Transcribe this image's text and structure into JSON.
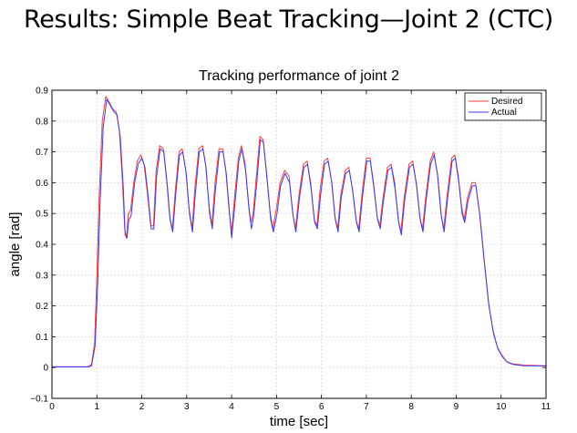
{
  "slide": {
    "title": "Results: Simple Beat Tracking—Joint 2 (CTC)"
  },
  "colors": {
    "desired": "#ff3b3b",
    "actual": "#3b3bff",
    "grid": "#cfcfcf",
    "axis": "#000000"
  },
  "chart_data": {
    "type": "line",
    "title": "Tracking performance of joint 2",
    "xlabel": "time [sec]",
    "ylabel": "angle [rad]",
    "xlim": [
      0,
      11
    ],
    "ylim": [
      -0.1,
      0.9
    ],
    "xticks": [
      "0",
      "1",
      "2",
      "3",
      "4",
      "5",
      "6",
      "7",
      "8",
      "9",
      "10",
      "11"
    ],
    "yticks": [
      "−0.1",
      "0",
      "0.1",
      "0.2",
      "0.3",
      "0.4",
      "0.5",
      "0.6",
      "0.7",
      "0.8",
      "0.9"
    ],
    "grid": true,
    "legend_position": "top-right",
    "series": [
      {
        "name": "Desired",
        "color": "#ff3b3b",
        "points": [
          [
            0,
            0.003
          ],
          [
            0.8,
            0.003
          ],
          [
            0.88,
            0.01
          ],
          [
            0.95,
            0.08
          ],
          [
            1.0,
            0.3
          ],
          [
            1.05,
            0.55
          ],
          [
            1.12,
            0.8
          ],
          [
            1.2,
            0.88
          ],
          [
            1.28,
            0.86
          ],
          [
            1.35,
            0.84
          ],
          [
            1.43,
            0.83
          ],
          [
            1.5,
            0.77
          ],
          [
            1.57,
            0.6
          ],
          [
            1.62,
            0.45
          ],
          [
            1.66,
            0.42
          ],
          [
            1.7,
            0.5
          ],
          [
            1.75,
            0.51
          ],
          [
            1.82,
            0.6
          ],
          [
            1.9,
            0.67
          ],
          [
            1.98,
            0.69
          ],
          [
            2.05,
            0.66
          ],
          [
            2.12,
            0.57
          ],
          [
            2.2,
            0.46
          ],
          [
            2.26,
            0.46
          ],
          [
            2.32,
            0.64
          ],
          [
            2.4,
            0.72
          ],
          [
            2.48,
            0.71
          ],
          [
            2.56,
            0.6
          ],
          [
            2.62,
            0.49
          ],
          [
            2.68,
            0.45
          ],
          [
            2.75,
            0.58
          ],
          [
            2.83,
            0.7
          ],
          [
            2.9,
            0.71
          ],
          [
            2.98,
            0.64
          ],
          [
            3.05,
            0.52
          ],
          [
            3.12,
            0.45
          ],
          [
            3.18,
            0.58
          ],
          [
            3.27,
            0.71
          ],
          [
            3.35,
            0.72
          ],
          [
            3.42,
            0.66
          ],
          [
            3.5,
            0.52
          ],
          [
            3.56,
            0.46
          ],
          [
            3.63,
            0.6
          ],
          [
            3.72,
            0.71
          ],
          [
            3.8,
            0.71
          ],
          [
            3.87,
            0.64
          ],
          [
            3.95,
            0.5
          ],
          [
            4.0,
            0.44
          ],
          [
            4.07,
            0.56
          ],
          [
            4.15,
            0.68
          ],
          [
            4.22,
            0.72
          ],
          [
            4.3,
            0.66
          ],
          [
            4.38,
            0.53
          ],
          [
            4.43,
            0.47
          ],
          [
            4.48,
            0.5
          ],
          [
            4.55,
            0.62
          ],
          [
            4.63,
            0.75
          ],
          [
            4.7,
            0.74
          ],
          [
            4.78,
            0.63
          ],
          [
            4.86,
            0.5
          ],
          [
            4.92,
            0.45
          ],
          [
            5.0,
            0.52
          ],
          [
            5.08,
            0.6
          ],
          [
            5.18,
            0.64
          ],
          [
            5.28,
            0.62
          ],
          [
            5.36,
            0.5
          ],
          [
            5.42,
            0.45
          ],
          [
            5.5,
            0.56
          ],
          [
            5.6,
            0.66
          ],
          [
            5.68,
            0.67
          ],
          [
            5.76,
            0.6
          ],
          [
            5.84,
            0.48
          ],
          [
            5.9,
            0.46
          ],
          [
            5.97,
            0.58
          ],
          [
            6.06,
            0.67
          ],
          [
            6.14,
            0.68
          ],
          [
            6.22,
            0.61
          ],
          [
            6.3,
            0.49
          ],
          [
            6.36,
            0.45
          ],
          [
            6.43,
            0.56
          ],
          [
            6.53,
            0.64
          ],
          [
            6.61,
            0.65
          ],
          [
            6.69,
            0.58
          ],
          [
            6.77,
            0.48
          ],
          [
            6.83,
            0.45
          ],
          [
            6.9,
            0.56
          ],
          [
            7.0,
            0.68
          ],
          [
            7.08,
            0.68
          ],
          [
            7.16,
            0.6
          ],
          [
            7.24,
            0.49
          ],
          [
            7.3,
            0.46
          ],
          [
            7.37,
            0.55
          ],
          [
            7.47,
            0.65
          ],
          [
            7.55,
            0.66
          ],
          [
            7.63,
            0.6
          ],
          [
            7.71,
            0.48
          ],
          [
            7.77,
            0.44
          ],
          [
            7.84,
            0.55
          ],
          [
            7.95,
            0.66
          ],
          [
            8.03,
            0.67
          ],
          [
            8.11,
            0.6
          ],
          [
            8.19,
            0.49
          ],
          [
            8.25,
            0.45
          ],
          [
            8.32,
            0.55
          ],
          [
            8.42,
            0.67
          ],
          [
            8.5,
            0.7
          ],
          [
            8.58,
            0.63
          ],
          [
            8.66,
            0.5
          ],
          [
            8.72,
            0.45
          ],
          [
            8.8,
            0.56
          ],
          [
            8.9,
            0.68
          ],
          [
            8.97,
            0.69
          ],
          [
            9.05,
            0.62
          ],
          [
            9.12,
            0.52
          ],
          [
            9.18,
            0.48
          ],
          [
            9.25,
            0.55
          ],
          [
            9.35,
            0.6
          ],
          [
            9.43,
            0.6
          ],
          [
            9.52,
            0.5
          ],
          [
            9.62,
            0.35
          ],
          [
            9.72,
            0.21
          ],
          [
            9.82,
            0.12
          ],
          [
            9.92,
            0.065
          ],
          [
            10.02,
            0.04
          ],
          [
            10.12,
            0.02
          ],
          [
            10.25,
            0.012
          ],
          [
            10.5,
            0.008
          ],
          [
            11,
            0.006
          ]
        ]
      },
      {
        "name": "Actual",
        "color": "#3b3bff",
        "points": [
          [
            0,
            0.002
          ],
          [
            0.8,
            0.002
          ],
          [
            0.88,
            0.005
          ],
          [
            0.96,
            0.07
          ],
          [
            1.02,
            0.28
          ],
          [
            1.07,
            0.53
          ],
          [
            1.14,
            0.78
          ],
          [
            1.22,
            0.87
          ],
          [
            1.3,
            0.85
          ],
          [
            1.38,
            0.83
          ],
          [
            1.45,
            0.82
          ],
          [
            1.52,
            0.75
          ],
          [
            1.59,
            0.58
          ],
          [
            1.63,
            0.43
          ],
          [
            1.67,
            0.42
          ],
          [
            1.71,
            0.48
          ],
          [
            1.76,
            0.49
          ],
          [
            1.84,
            0.6
          ],
          [
            1.92,
            0.66
          ],
          [
            2.0,
            0.68
          ],
          [
            2.07,
            0.65
          ],
          [
            2.14,
            0.56
          ],
          [
            2.21,
            0.45
          ],
          [
            2.27,
            0.45
          ],
          [
            2.33,
            0.62
          ],
          [
            2.41,
            0.71
          ],
          [
            2.49,
            0.7
          ],
          [
            2.57,
            0.59
          ],
          [
            2.63,
            0.48
          ],
          [
            2.69,
            0.44
          ],
          [
            2.76,
            0.57
          ],
          [
            2.84,
            0.69
          ],
          [
            2.91,
            0.7
          ],
          [
            2.99,
            0.63
          ],
          [
            3.06,
            0.5
          ],
          [
            3.13,
            0.44
          ],
          [
            3.19,
            0.56
          ],
          [
            3.28,
            0.7
          ],
          [
            3.36,
            0.71
          ],
          [
            3.43,
            0.65
          ],
          [
            3.51,
            0.5
          ],
          [
            3.57,
            0.45
          ],
          [
            3.64,
            0.58
          ],
          [
            3.73,
            0.7
          ],
          [
            3.81,
            0.7
          ],
          [
            3.88,
            0.63
          ],
          [
            3.96,
            0.49
          ],
          [
            4.0,
            0.42
          ],
          [
            4.08,
            0.54
          ],
          [
            4.16,
            0.67
          ],
          [
            4.23,
            0.71
          ],
          [
            4.31,
            0.64
          ],
          [
            4.39,
            0.51
          ],
          [
            4.44,
            0.45
          ],
          [
            4.49,
            0.49
          ],
          [
            4.56,
            0.6
          ],
          [
            4.64,
            0.74
          ],
          [
            4.71,
            0.73
          ],
          [
            4.79,
            0.61
          ],
          [
            4.87,
            0.48
          ],
          [
            4.93,
            0.44
          ],
          [
            5.01,
            0.5
          ],
          [
            5.09,
            0.59
          ],
          [
            5.19,
            0.63
          ],
          [
            5.29,
            0.6
          ],
          [
            5.37,
            0.49
          ],
          [
            5.43,
            0.44
          ],
          [
            5.51,
            0.55
          ],
          [
            5.61,
            0.65
          ],
          [
            5.69,
            0.66
          ],
          [
            5.77,
            0.58
          ],
          [
            5.85,
            0.47
          ],
          [
            5.91,
            0.45
          ],
          [
            5.98,
            0.56
          ],
          [
            6.07,
            0.66
          ],
          [
            6.15,
            0.67
          ],
          [
            6.23,
            0.6
          ],
          [
            6.31,
            0.48
          ],
          [
            6.37,
            0.44
          ],
          [
            6.44,
            0.55
          ],
          [
            6.54,
            0.63
          ],
          [
            6.62,
            0.64
          ],
          [
            6.7,
            0.57
          ],
          [
            6.78,
            0.47
          ],
          [
            6.84,
            0.44
          ],
          [
            6.91,
            0.55
          ],
          [
            7.01,
            0.67
          ],
          [
            7.09,
            0.67
          ],
          [
            7.17,
            0.58
          ],
          [
            7.25,
            0.48
          ],
          [
            7.31,
            0.45
          ],
          [
            7.38,
            0.54
          ],
          [
            7.48,
            0.64
          ],
          [
            7.56,
            0.65
          ],
          [
            7.64,
            0.58
          ],
          [
            7.72,
            0.47
          ],
          [
            7.78,
            0.43
          ],
          [
            7.85,
            0.54
          ],
          [
            7.96,
            0.65
          ],
          [
            8.04,
            0.66
          ],
          [
            8.12,
            0.59
          ],
          [
            8.2,
            0.48
          ],
          [
            8.26,
            0.44
          ],
          [
            8.33,
            0.54
          ],
          [
            8.43,
            0.66
          ],
          [
            8.51,
            0.69
          ],
          [
            8.59,
            0.62
          ],
          [
            8.67,
            0.49
          ],
          [
            8.73,
            0.44
          ],
          [
            8.81,
            0.55
          ],
          [
            8.91,
            0.67
          ],
          [
            8.98,
            0.68
          ],
          [
            9.06,
            0.6
          ],
          [
            9.13,
            0.5
          ],
          [
            9.19,
            0.47
          ],
          [
            9.26,
            0.54
          ],
          [
            9.36,
            0.59
          ],
          [
            9.44,
            0.59
          ],
          [
            9.53,
            0.49
          ],
          [
            9.63,
            0.34
          ],
          [
            9.73,
            0.2
          ],
          [
            9.83,
            0.11
          ],
          [
            9.93,
            0.06
          ],
          [
            10.03,
            0.035
          ],
          [
            10.13,
            0.018
          ],
          [
            10.26,
            0.01
          ],
          [
            10.5,
            0.006
          ],
          [
            11,
            0.005
          ]
        ]
      }
    ]
  }
}
